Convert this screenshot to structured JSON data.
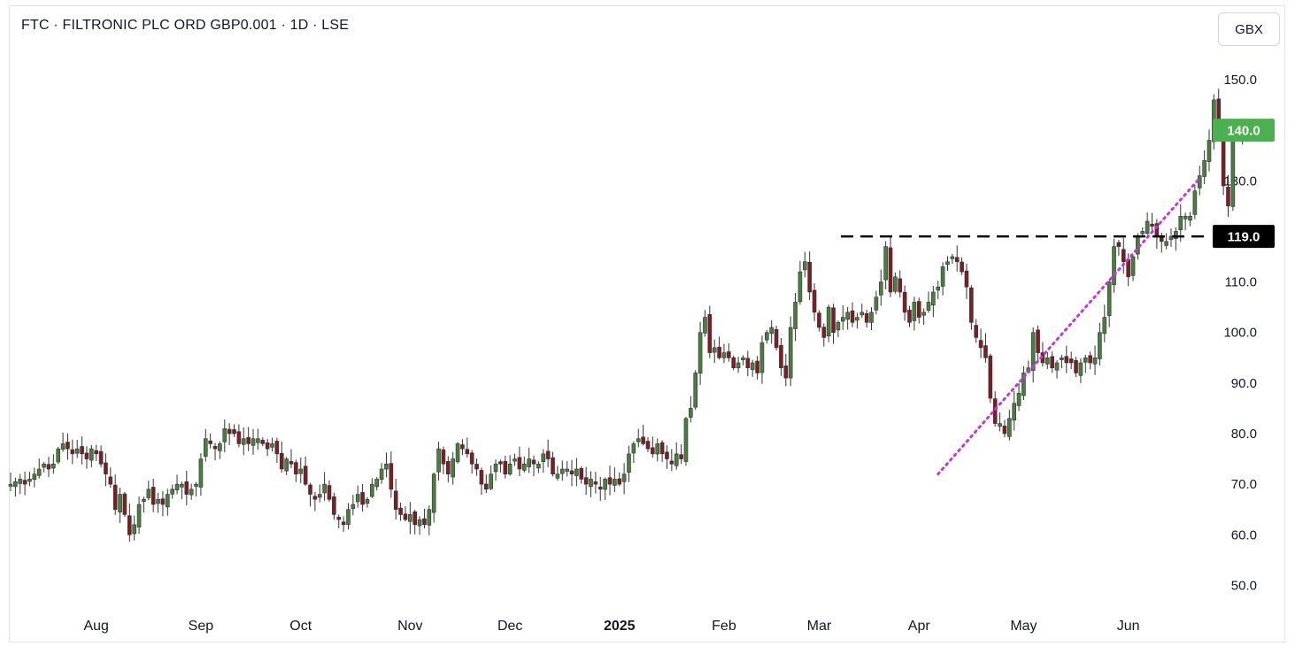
{
  "header": {
    "title": "FTC · FILTRONIC PLC ORD GBP0.001 · 1D · LSE",
    "currency_label": "GBX"
  },
  "chart_data": {
    "type": "candlestick",
    "y_range": [
      45,
      157
    ],
    "y_ticks": [
      "50.0",
      "60.0",
      "70.0",
      "80.0",
      "90.0",
      "100.0",
      "110.0",
      "120.0",
      "130.0",
      "140.0",
      "150.0"
    ],
    "x_labels": [
      {
        "label": "Aug",
        "date": "2024-08-01",
        "bold": false
      },
      {
        "label": "Sep",
        "date": "2024-09-02",
        "bold": false
      },
      {
        "label": "Oct",
        "date": "2024-10-01",
        "bold": false
      },
      {
        "label": "Nov",
        "date": "2024-11-01",
        "bold": false
      },
      {
        "label": "Dec",
        "date": "2024-12-02",
        "bold": false
      },
      {
        "label": "2025",
        "date": "2025-01-02",
        "bold": true
      },
      {
        "label": "Feb",
        "date": "2025-02-03",
        "bold": false
      },
      {
        "label": "Mar",
        "date": "2025-03-03",
        "bold": false
      },
      {
        "label": "Apr",
        "date": "2025-04-01",
        "bold": false
      },
      {
        "label": "May",
        "date": "2025-05-01",
        "bold": false
      },
      {
        "label": "Jun",
        "date": "2025-06-02",
        "bold": false
      }
    ],
    "start_date": "2024-07-08",
    "closes": [
      70,
      70.5,
      71,
      70,
      71,
      72,
      73,
      74,
      73,
      74,
      77,
      78,
      77,
      76,
      77,
      76,
      75,
      77,
      76,
      74,
      72,
      70,
      65,
      68,
      64,
      60,
      62,
      66,
      67,
      69,
      66,
      67,
      66,
      68,
      69,
      70,
      70,
      68,
      69,
      70,
      75,
      79,
      78,
      77,
      78,
      81,
      80,
      80,
      78,
      79,
      78,
      79,
      79,
      78,
      77,
      78,
      76,
      73,
      75,
      74,
      72,
      73,
      70,
      68,
      67,
      68,
      70,
      67,
      64,
      63,
      62,
      65,
      66,
      68,
      66,
      67,
      70,
      71,
      73,
      74,
      69,
      65,
      64,
      63,
      64,
      62,
      63,
      62,
      65,
      72,
      77,
      74,
      72,
      75,
      78,
      77,
      76,
      74,
      73,
      70,
      69,
      72,
      74,
      74,
      72,
      74,
      75,
      73,
      74,
      75,
      74,
      74,
      76,
      75,
      72,
      72,
      73,
      73,
      72,
      73,
      71,
      70,
      71,
      70,
      69,
      71,
      70,
      71,
      70,
      72,
      76,
      78,
      79,
      78,
      77,
      76,
      78,
      76,
      75,
      74,
      76,
      75,
      83,
      85,
      92,
      100,
      103,
      96,
      97,
      95,
      96,
      95,
      93,
      94,
      95,
      93,
      94,
      92,
      98,
      100,
      101,
      97,
      93,
      91,
      101,
      106,
      112,
      114,
      108,
      104,
      101,
      99,
      105,
      100,
      102,
      103,
      104,
      102,
      103,
      104,
      102,
      104,
      107,
      110,
      117,
      108,
      111,
      108,
      104,
      102,
      106,
      103,
      104,
      106,
      108,
      109,
      113,
      114,
      115,
      114,
      112,
      109,
      102,
      99,
      97,
      95,
      87,
      82,
      82,
      80,
      83,
      86,
      88,
      92,
      93,
      100,
      96,
      94,
      95,
      93,
      94,
      95,
      94,
      94,
      92,
      94,
      95,
      94,
      95,
      100,
      103,
      110,
      117,
      117,
      114,
      111,
      115,
      119,
      120,
      122,
      121,
      119,
      118,
      118,
      119,
      120,
      123,
      123,
      123,
      128,
      131,
      134,
      138,
      146,
      140,
      129,
      125,
      140,
      139,
      140
    ],
    "current_price": 140.0,
    "horizontal_level": 119.0,
    "trendline": {
      "start_date": "2025-04-07",
      "start_price": 72.0,
      "end_date": "2025-06-23",
      "end_price": 130.5
    },
    "colors": {
      "up_candle": "#4a7d3f",
      "down_candle": "#7a1f26",
      "wick": "#333333",
      "price_badge": "#4caf50",
      "level_badge": "#000000",
      "level_line": "#000000",
      "trendline": "#c13ad6",
      "axis_text": "#131722",
      "border": "#e0e3eb"
    }
  }
}
